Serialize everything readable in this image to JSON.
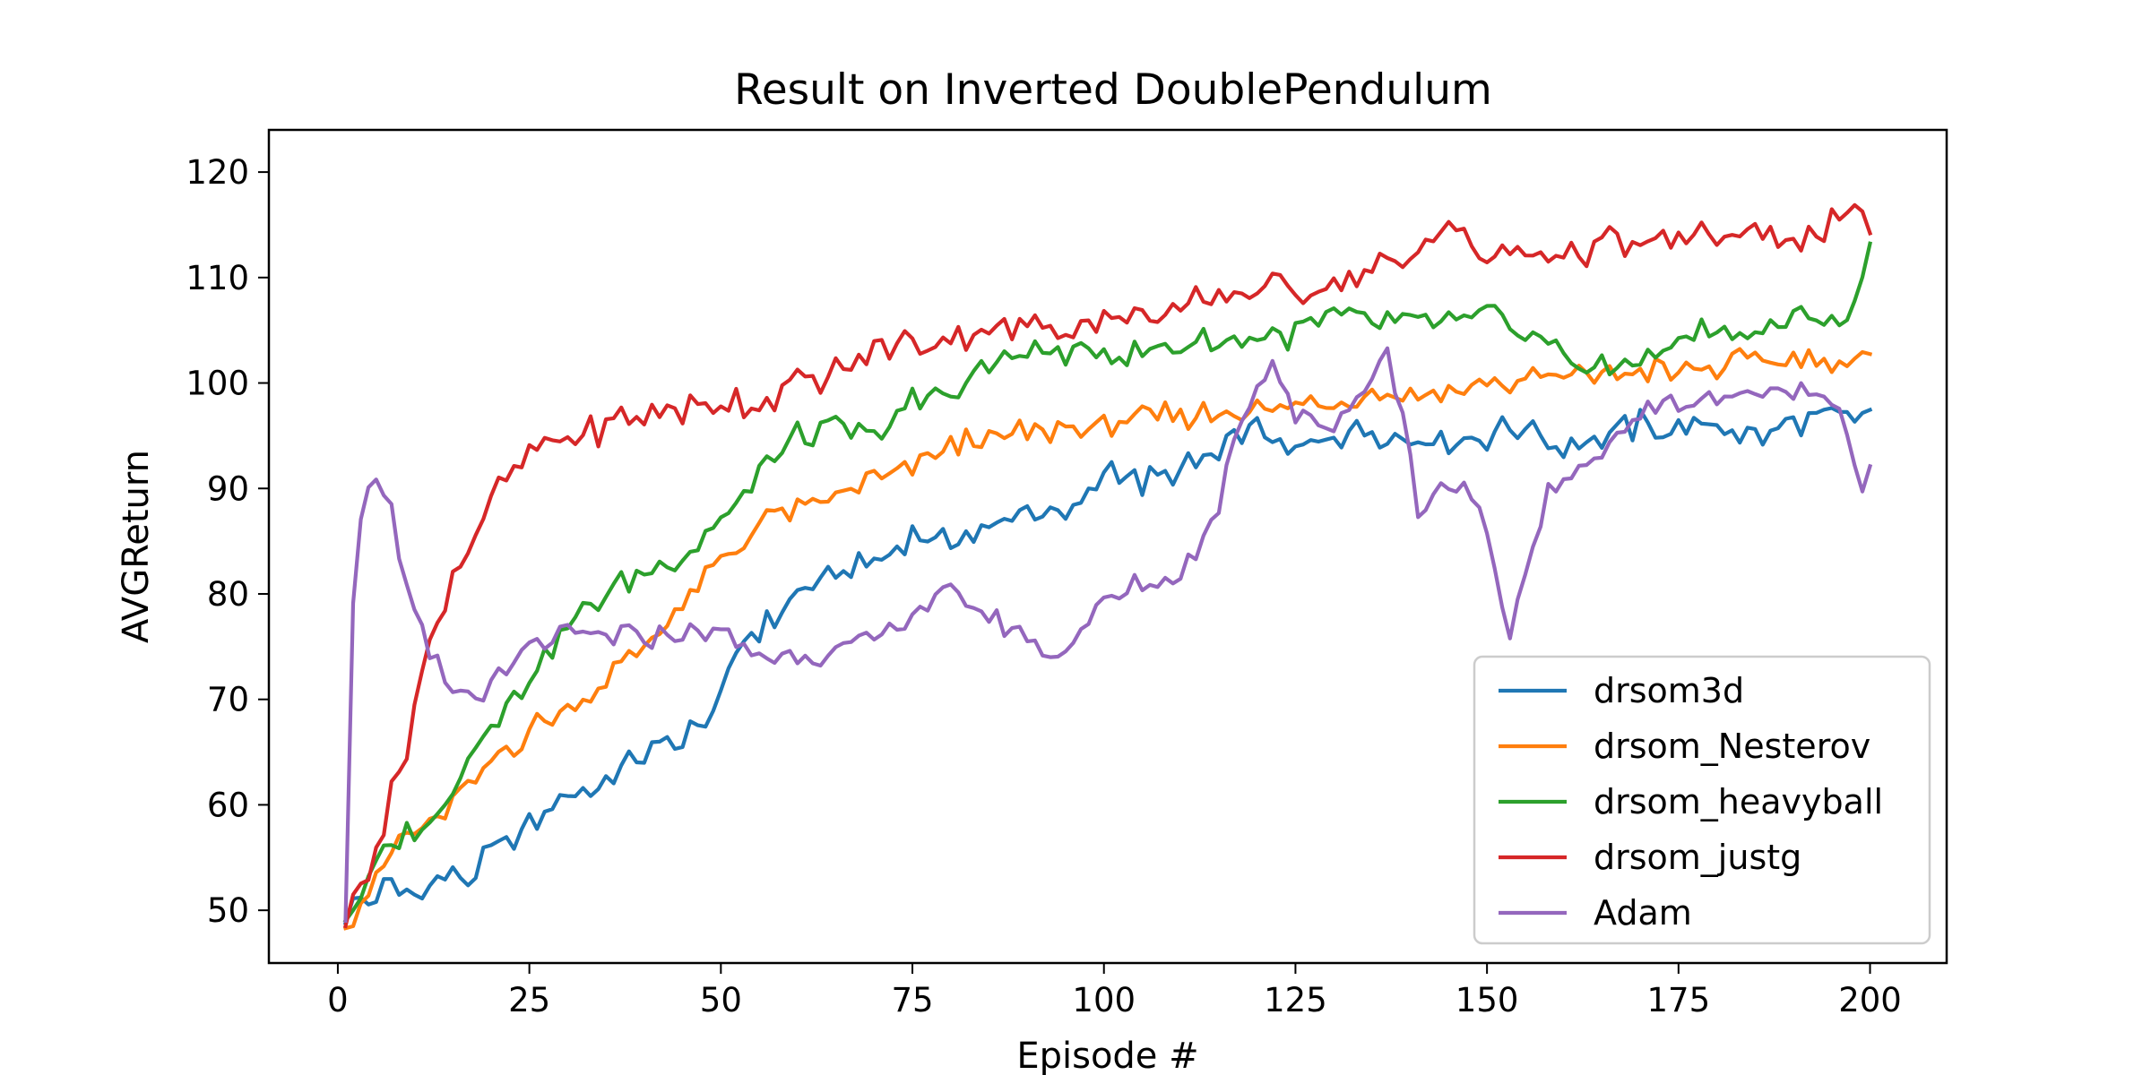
{
  "chart_data": {
    "type": "line",
    "title": "Result on Inverted DoublePendulum",
    "xlabel": "Episode #",
    "ylabel": "AVGReturn",
    "xlim": [
      -9,
      210
    ],
    "ylim": [
      45,
      124
    ],
    "xticks": [
      0,
      25,
      50,
      75,
      100,
      125,
      150,
      175,
      200
    ],
    "yticks": [
      50,
      60,
      70,
      80,
      90,
      100,
      110,
      120
    ],
    "x_start": 1,
    "x_step": 1,
    "grid": false,
    "legend_position": "lower-right",
    "series": [
      {
        "name": "drsom3d",
        "color": "#1f77b4",
        "anchors": [
          [
            1,
            48.8
          ],
          [
            2,
            51
          ],
          [
            4,
            51
          ],
          [
            6,
            52
          ],
          [
            10,
            51.5
          ],
          [
            14,
            53
          ],
          [
            17,
            53
          ],
          [
            20,
            55.5
          ],
          [
            25,
            58
          ],
          [
            30,
            61
          ],
          [
            35,
            62
          ],
          [
            40,
            65
          ],
          [
            45,
            66
          ],
          [
            50,
            70
          ],
          [
            53,
            76
          ],
          [
            58,
            78
          ],
          [
            60,
            80
          ],
          [
            65,
            82
          ],
          [
            70,
            83
          ],
          [
            75,
            85.5
          ],
          [
            80,
            85
          ],
          [
            85,
            86
          ],
          [
            90,
            88
          ],
          [
            95,
            87
          ],
          [
            99,
            90
          ],
          [
            100,
            92.5
          ],
          [
            105,
            90.5
          ],
          [
            110,
            92
          ],
          [
            115,
            93
          ],
          [
            118,
            95
          ],
          [
            120,
            96
          ],
          [
            125,
            93
          ],
          [
            130,
            95
          ],
          [
            135,
            95.5
          ],
          [
            140,
            95
          ],
          [
            145,
            94.5
          ],
          [
            150,
            95
          ],
          [
            155,
            96
          ],
          [
            160,
            94
          ],
          [
            165,
            95
          ],
          [
            170,
            96
          ],
          [
            175,
            95.5
          ],
          [
            180,
            96
          ],
          [
            185,
            95
          ],
          [
            190,
            96
          ],
          [
            195,
            97
          ],
          [
            198,
            96
          ],
          [
            200,
            97.5
          ]
        ],
        "noise": 1.3
      },
      {
        "name": "drsom_Nesterov",
        "color": "#ff7f0e",
        "anchors": [
          [
            1,
            48.3
          ],
          [
            5,
            53
          ],
          [
            8,
            57
          ],
          [
            12,
            58
          ],
          [
            15,
            60
          ],
          [
            20,
            64
          ],
          [
            25,
            67
          ],
          [
            30,
            69
          ],
          [
            35,
            72
          ],
          [
            40,
            75
          ],
          [
            45,
            79
          ],
          [
            50,
            83
          ],
          [
            52,
            84
          ],
          [
            55,
            87
          ],
          [
            60,
            88
          ],
          [
            65,
            89
          ],
          [
            70,
            91
          ],
          [
            75,
            92
          ],
          [
            80,
            94
          ],
          [
            85,
            95
          ],
          [
            90,
            95.5
          ],
          [
            95,
            95.5
          ],
          [
            100,
            96
          ],
          [
            105,
            96.5
          ],
          [
            110,
            97
          ],
          [
            115,
            97
          ],
          [
            120,
            97.5
          ],
          [
            125,
            98
          ],
          [
            130,
            98.5
          ],
          [
            135,
            99
          ],
          [
            140,
            99
          ],
          [
            145,
            99.5
          ],
          [
            150,
            100
          ],
          [
            155,
            100
          ],
          [
            160,
            100.5
          ],
          [
            165,
            101
          ],
          [
            170,
            101
          ],
          [
            175,
            101
          ],
          [
            180,
            101.5
          ],
          [
            185,
            102
          ],
          [
            190,
            102
          ],
          [
            195,
            102
          ],
          [
            200,
            102.2
          ]
        ],
        "noise": 1.2
      },
      {
        "name": "drsom_heavyball",
        "color": "#2ca02c",
        "anchors": [
          [
            1,
            49
          ],
          [
            5,
            54
          ],
          [
            8,
            57
          ],
          [
            12,
            58
          ],
          [
            16,
            63
          ],
          [
            20,
            68
          ],
          [
            25,
            72
          ],
          [
            30,
            77
          ],
          [
            35,
            80
          ],
          [
            40,
            82
          ],
          [
            45,
            84
          ],
          [
            50,
            87
          ],
          [
            53,
            89
          ],
          [
            57,
            93
          ],
          [
            60,
            95
          ],
          [
            65,
            96
          ],
          [
            70,
            95
          ],
          [
            75,
            98
          ],
          [
            80,
            99
          ],
          [
            85,
            102
          ],
          [
            90,
            103
          ],
          [
            95,
            103
          ],
          [
            100,
            103
          ],
          [
            105,
            103
          ],
          [
            110,
            104
          ],
          [
            115,
            104
          ],
          [
            120,
            104
          ],
          [
            125,
            105
          ],
          [
            130,
            106
          ],
          [
            135,
            106
          ],
          [
            140,
            105.5
          ],
          [
            145,
            105.5
          ],
          [
            150,
            106
          ],
          [
            155,
            105
          ],
          [
            160,
            103
          ],
          [
            165,
            101
          ],
          [
            170,
            102
          ],
          [
            175,
            104
          ],
          [
            180,
            105
          ],
          [
            185,
            105
          ],
          [
            190,
            106
          ],
          [
            195,
            106
          ],
          [
            198,
            107
          ],
          [
            200,
            112.3
          ]
        ],
        "noise": 1.4
      },
      {
        "name": "drsom_justg",
        "color": "#d62728",
        "anchors": [
          [
            1,
            48.5
          ],
          [
            3,
            53
          ],
          [
            6,
            58
          ],
          [
            9,
            66
          ],
          [
            12,
            75
          ],
          [
            15,
            82
          ],
          [
            18,
            86
          ],
          [
            21,
            90
          ],
          [
            25,
            93
          ],
          [
            30,
            95
          ],
          [
            35,
            96
          ],
          [
            40,
            97
          ],
          [
            45,
            97.5
          ],
          [
            50,
            98
          ],
          [
            55,
            98.5
          ],
          [
            60,
            100
          ],
          [
            65,
            101
          ],
          [
            70,
            103
          ],
          [
            75,
            104
          ],
          [
            80,
            104.5
          ],
          [
            85,
            105
          ],
          [
            90,
            105
          ],
          [
            95,
            105.5
          ],
          [
            100,
            106
          ],
          [
            105,
            106
          ],
          [
            110,
            107
          ],
          [
            115,
            108
          ],
          [
            120,
            109
          ],
          [
            125,
            109
          ],
          [
            130,
            109.5
          ],
          [
            135,
            111
          ],
          [
            140,
            112
          ],
          [
            143,
            114
          ],
          [
            145,
            115
          ],
          [
            148,
            113
          ],
          [
            150,
            112
          ],
          [
            155,
            112
          ],
          [
            160,
            112.5
          ],
          [
            165,
            113
          ],
          [
            170,
            113
          ],
          [
            175,
            113.5
          ],
          [
            180,
            114
          ],
          [
            185,
            114
          ],
          [
            190,
            114
          ],
          [
            195,
            115
          ],
          [
            198,
            116
          ],
          [
            200,
            115.8
          ]
        ],
        "noise": 1.6
      },
      {
        "name": "Adam",
        "color": "#9467bd",
        "anchors": [
          [
            1,
            49
          ],
          [
            2,
            80
          ],
          [
            3,
            87.5
          ],
          [
            4,
            90
          ],
          [
            5,
            91
          ],
          [
            6,
            90
          ],
          [
            7,
            88
          ],
          [
            8,
            83
          ],
          [
            9,
            81
          ],
          [
            10,
            78
          ],
          [
            12,
            74
          ],
          [
            14,
            72
          ],
          [
            16,
            70.5
          ],
          [
            18,
            70.5
          ],
          [
            20,
            71
          ],
          [
            22,
            72.5
          ],
          [
            24,
            74
          ],
          [
            27,
            75.5
          ],
          [
            30,
            76
          ],
          [
            35,
            76
          ],
          [
            40,
            76
          ],
          [
            45,
            76
          ],
          [
            50,
            76.5
          ],
          [
            53,
            74.5
          ],
          [
            56,
            74
          ],
          [
            60,
            74
          ],
          [
            65,
            74.5
          ],
          [
            70,
            76
          ],
          [
            75,
            78
          ],
          [
            80,
            80
          ],
          [
            85,
            78
          ],
          [
            90,
            76
          ],
          [
            93,
            74
          ],
          [
            95,
            75
          ],
          [
            100,
            79
          ],
          [
            105,
            81
          ],
          [
            110,
            82
          ],
          [
            113,
            85
          ],
          [
            115,
            88
          ],
          [
            117,
            95
          ],
          [
            120,
            100
          ],
          [
            122,
            102
          ],
          [
            125,
            97
          ],
          [
            130,
            96
          ],
          [
            134,
            100
          ],
          [
            137,
            103
          ],
          [
            139,
            97
          ],
          [
            141,
            88
          ],
          [
            143,
            90
          ],
          [
            146,
            91
          ],
          [
            150,
            86
          ],
          [
            152,
            78
          ],
          [
            153,
            76
          ],
          [
            155,
            82
          ],
          [
            158,
            90
          ],
          [
            162,
            91
          ],
          [
            166,
            95
          ],
          [
            170,
            97
          ],
          [
            174,
            98
          ],
          [
            178,
            98
          ],
          [
            182,
            99
          ],
          [
            186,
            99
          ],
          [
            190,
            99
          ],
          [
            193,
            99
          ],
          [
            196,
            98
          ],
          [
            199,
            90
          ],
          [
            200,
            92.5
          ]
        ],
        "noise": 1.1
      }
    ]
  }
}
